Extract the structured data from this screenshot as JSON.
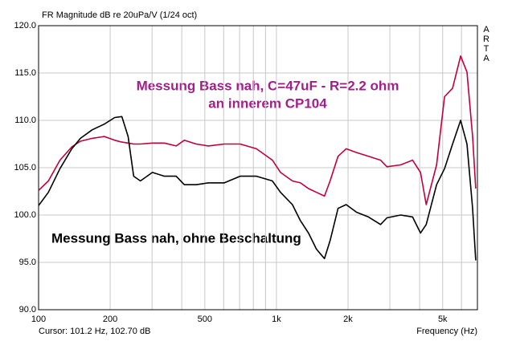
{
  "chart_data": {
    "type": "line",
    "title": "FR Magnitude dB re 20uPa/V (1/24 oct)",
    "side_label": "ARTA",
    "cursor_label": "Cursor: 101.2 Hz, 102.70 dB",
    "xlabel": "Frequency (Hz)",
    "annotations": [
      {
        "text": "Messung Bass nah, C=47uF - R=2.2 ohm",
        "color": "#a0208a"
      },
      {
        "text": "an innerem CP104",
        "color": "#a0208a"
      },
      {
        "text": "Messung Bass nah, ohne Beschaltung",
        "color": "#000000"
      }
    ],
    "xscale": "log",
    "xlim": [
      100,
      7000
    ],
    "ylim": [
      90,
      120
    ],
    "xticks": [
      100,
      200,
      500,
      {
        "value": 1000,
        "label": "1k"
      },
      {
        "value": 2000,
        "label": "2k"
      },
      {
        "value": 5000,
        "label": "5k"
      }
    ],
    "xminorticks": [
      300,
      400,
      600,
      700,
      800,
      900,
      3000,
      4000,
      6000,
      7000
    ],
    "yticks": [
      {
        "value": 90,
        "label": "90.0"
      },
      {
        "value": 95,
        "label": "95.0"
      },
      {
        "value": 100,
        "label": "100.0"
      },
      {
        "value": 105,
        "label": "105.0"
      },
      {
        "value": 110,
        "label": "110.0"
      },
      {
        "value": 115,
        "label": "115.0"
      },
      {
        "value": 120,
        "label": "120.0"
      }
    ],
    "grid": true,
    "x": [
      100,
      110,
      123,
      138,
      150,
      168,
      189,
      209,
      224,
      238,
      251,
      268,
      301,
      338,
      379,
      410,
      460,
      517,
      604,
      704,
      824,
      962,
      1040,
      1167,
      1262,
      1364,
      1473,
      1592,
      1682,
      1816,
      1964,
      2172,
      2438,
      2740,
      2915,
      3327,
      3736,
      4036,
      4264,
      4713,
      5093,
      5505,
      5948,
      6327,
      6681,
      6887
    ],
    "series": [
      {
        "color": "#c0003c",
        "values": [
          102.6,
          103.6,
          105.8,
          107.2,
          107.8,
          108.1,
          108.3,
          107.9,
          107.7,
          107.6,
          107.5,
          107.5,
          107.6,
          107.6,
          107.3,
          107.9,
          107.5,
          107.3,
          107.5,
          107.5,
          107.0,
          105.8,
          104.5,
          103.6,
          103.4,
          102.8,
          102.4,
          102.0,
          103.6,
          106.2,
          107.0,
          106.6,
          106.2,
          105.8,
          105.1,
          105.3,
          105.8,
          104.5,
          101.1,
          105.3,
          112.5,
          113.4,
          116.8,
          115.1,
          108.3,
          102.8
        ]
      },
      {
        "color": "#000000",
        "values": [
          101.0,
          102.4,
          104.9,
          107.0,
          108.1,
          109.0,
          109.6,
          110.3,
          110.4,
          108.3,
          104.1,
          103.6,
          104.5,
          104.1,
          104.1,
          103.2,
          103.2,
          103.4,
          103.4,
          104.1,
          104.1,
          103.6,
          102.4,
          101.1,
          99.4,
          98.1,
          96.4,
          95.4,
          97.3,
          100.7,
          101.1,
          100.3,
          99.8,
          99.0,
          99.7,
          100.0,
          99.8,
          98.1,
          99.0,
          103.2,
          104.9,
          107.5,
          110.0,
          107.5,
          100.7,
          95.2
        ]
      }
    ]
  }
}
